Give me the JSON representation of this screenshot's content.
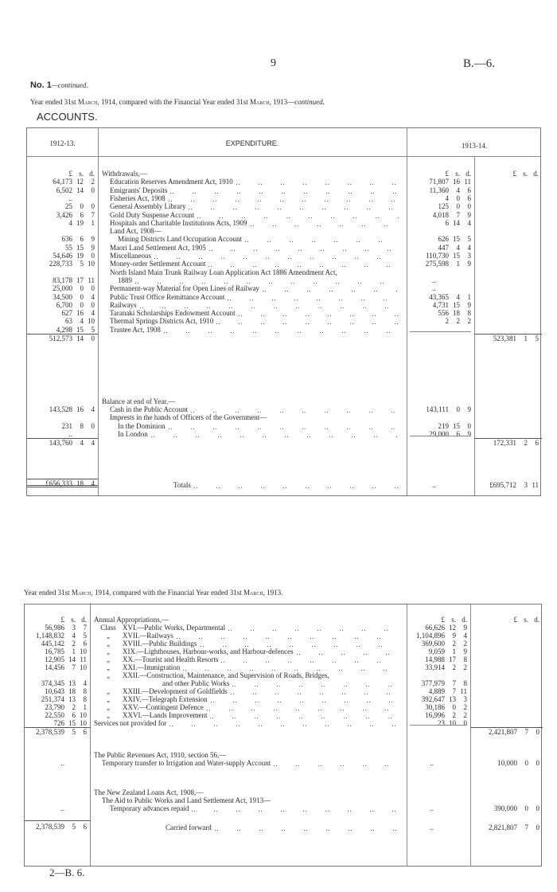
{
  "page": {
    "page_number": "9",
    "doc_ref": "B.—6.",
    "heading": "No. 1",
    "heading_suffix": "—continued.",
    "subtitle_1": "Year ended 31st March, 1914, compared with the Financial Year ended 31st March, 1913—continued.",
    "section_title": "ACCOUNTS.",
    "subtitle_2": "Year ended 31st March, 1914, compared with the Financial Year ended 31st March, 1913.",
    "footer_ref": "2—B. 6."
  },
  "table1": {
    "headers": {
      "prev": "1912-13.",
      "desc": "EXPENDITURE.",
      "cur": "1913-14."
    },
    "units": {
      "l": "£",
      "s": "s.",
      "d": "d."
    },
    "rows": [
      {
        "prev": "units",
        "desc": "Withdrawals,—",
        "indent": 0,
        "cur": "units",
        "total": "units",
        "nolead": true
      },
      {
        "prev": "64,173 12 2",
        "desc": "Education Reserves Amendment Act, 1910",
        "indent": 1,
        "cur": "71,807 16 11"
      },
      {
        "prev": "6,502 14 0",
        "desc": "Emigrants' Deposits",
        "indent": 1,
        "cur": "11,360 4 6"
      },
      {
        "prev": "..",
        "desc": "Fisheries Act, 1908",
        "indent": 1,
        "cur": "4 0 6"
      },
      {
        "prev": "25 0 0",
        "desc": "General Assembly Library",
        "indent": 1,
        "cur": "125 0 0"
      },
      {
        "prev": "3,426 6 7",
        "desc": "Gold Duty Suspense Account",
        "indent": 1,
        "cur": "4,018 7 9"
      },
      {
        "prev": "4 19 1",
        "desc": "Hospitals and Charitable Institutions Acts, 1909",
        "indent": 1,
        "cur": "6 14 4"
      },
      {
        "prev": "",
        "desc": "Land Act, 1908—",
        "indent": 1,
        "cur": "",
        "nolead": true
      },
      {
        "prev": "636 6 9",
        "desc": "Mining Districts Land Occupation Account",
        "indent": 2,
        "cur": "626 15 5"
      },
      {
        "prev": "55 15 9",
        "desc": "Maori Land Settlement Act, 1905",
        "indent": 1,
        "cur": "447 4 4"
      },
      {
        "prev": "54,646 19 0",
        "desc": "Miscellaneous",
        "indent": 1,
        "cur": "110,730 15 3"
      },
      {
        "prev": "228,733 5 10",
        "desc": "Money-order Settlement Account",
        "indent": 1,
        "cur": "275,598 1 9"
      },
      {
        "prev": "",
        "desc": "North Island Main Trunk Railway Loan Application Act 1886 Amendment Act,",
        "indent": 1,
        "cur": "",
        "nolead": true
      },
      {
        "prev": "83,178 17 11",
        "desc": "1889",
        "indent": 2,
        "cur": ".."
      },
      {
        "prev": "25,000 0 0",
        "desc": "Permanent-way Material for Open Lines of Railway",
        "indent": 1,
        "cur": ".."
      },
      {
        "prev": "34,500 0 4",
        "desc": "Public Trust Office Remittance Account",
        "indent": 1,
        "cur": "43,365 4 1"
      },
      {
        "prev": "6,700 0 0",
        "desc": "Railways",
        "indent": 1,
        "cur": "4,731 15 9"
      },
      {
        "prev": "627 16 4",
        "desc": "Taranaki Scholarships Endowment Account",
        "indent": 1,
        "cur": "556 18 8"
      },
      {
        "prev": "63 4 10",
        "desc": "Thermal Springs Districts Act, 1910",
        "indent": 1,
        "cur": "2 2 2"
      },
      {
        "prev": "4,298 15 5",
        "desc": "Trustee Act, 1908",
        "indent": 1,
        "cur": ".."
      },
      {
        "prev": "512,573 14 0",
        "desc": "",
        "cur": "",
        "total": "523,381 1 5",
        "subtotal": true
      }
    ],
    "balance_rows": [
      {
        "prev": "",
        "desc": "Balance at end of Year,—",
        "indent": 0,
        "cur": "",
        "nolead": true
      },
      {
        "prev": "143,528 16 4",
        "desc": "Cash in the Public Account",
        "indent": 1,
        "cur": "143,111 0 9"
      },
      {
        "prev": "",
        "desc": "Imprests in the hands of Officers of the Government—",
        "indent": 1,
        "cur": "",
        "nolead": true
      },
      {
        "prev": "231 8 0",
        "desc": "In the Dominion",
        "indent": 2,
        "cur": "219 15 0"
      },
      {
        "prev": "..",
        "desc": "In London",
        "indent": 2,
        "cur": "29,000 6 9"
      },
      {
        "prev": "143,760 4 4",
        "desc": "",
        "cur": "",
        "total": "172,331 2 6",
        "subtotal": true
      }
    ],
    "totals_row": {
      "prev": "£656,333 18 4",
      "desc": "Totals",
      "cur": "..",
      "total": "£695,712 3 11"
    }
  },
  "table2": {
    "rows": [
      {
        "prev": "units",
        "desc": "Annual Appropriations,—",
        "indent": 0,
        "cur": "units",
        "total": "units",
        "nolead": true
      },
      {
        "prev": "56,986 3 7",
        "mark": "Class",
        "desc": "XVI.—Public Works, Departmental",
        "cur": "66,626 12 9"
      },
      {
        "prev": "1,148,832 4 5",
        "mark": "„",
        "desc": "XVII.—Railways",
        "cur": "1,104,896 9 4"
      },
      {
        "prev": "445,142 2 6",
        "mark": "„",
        "desc": "XVIII.—Public Buildings",
        "cur": "369,600 2 2"
      },
      {
        "prev": "16,785 1 10",
        "mark": "„",
        "desc": "XIX.—Lighthouses, Harbour-works, and Harbour-defences",
        "cur": "9,059 1 9"
      },
      {
        "prev": "12,905 14 11",
        "mark": "„",
        "desc": "XX.—Tourist and Health Resorts",
        "cur": "14,988 17 8"
      },
      {
        "prev": "14,456 7 10",
        "mark": "„",
        "desc": "XXI.—Immigration",
        "cur": "33,914 2 2"
      },
      {
        "prev": "",
        "mark": "„",
        "desc": "XXII.—Construction, Maintenance, and Supervision of Roads, Bridges,",
        "cur": "",
        "nolead": true
      },
      {
        "prev": "374,345 13 4",
        "mark": "",
        "desc": "and other Public Works",
        "indent": 5,
        "cur": "377,979 7 8"
      },
      {
        "prev": "10,643 18 8",
        "mark": "„",
        "desc": "XXIII.—Development of Goldfields",
        "cur": "4,889 7 11"
      },
      {
        "prev": "251,374 13 8",
        "mark": "„",
        "desc": "XXIV.—Telegraph Extension",
        "cur": "392,647 13 3"
      },
      {
        "prev": "23,790 2 1",
        "mark": "„",
        "desc": "XXV.—Contingent Defence",
        "cur": "30,186 0 2"
      },
      {
        "prev": "22,550 6 10",
        "mark": "„",
        "desc": "XXVI.—Lands Improvement",
        "cur": "16,996 2 2"
      },
      {
        "prev": "726 15 10",
        "desc": "Services not provided for",
        "indent": 0,
        "cur": "23 10 0"
      },
      {
        "prev": "2,378,539 5 6",
        "desc": "",
        "cur": "",
        "total": "2,421,807 7 0",
        "subtotal": true
      }
    ],
    "revenue_rows": [
      {
        "prev": "",
        "desc": "The Public Revenues Act, 1910, section 56,—",
        "indent": 0,
        "cur": "",
        "nolead": true
      },
      {
        "prev": "..",
        "desc": "Temporary transfer to Irrigation and Water-supply Account",
        "indent": 1,
        "cur": "..",
        "total": "10,000 0 0"
      }
    ],
    "loans_rows": [
      {
        "prev": "",
        "desc": "The New Zealand Loans Act, 1908,—",
        "indent": 0,
        "cur": "",
        "nolead": true
      },
      {
        "prev": "",
        "desc": "The Aid to Public Works and Land Settlement Act, 1913—",
        "indent": 1,
        "cur": "",
        "nolead": true
      },
      {
        "prev": "..",
        "desc": "Temporary advances repaid",
        "indent": 2,
        "cur": "..",
        "total": "390,000 0 0"
      }
    ],
    "carried_row": {
      "prev": "2,378,539 5 6",
      "desc": "Carried forward",
      "cur": "..",
      "total": "2,821,807 7 0"
    }
  }
}
